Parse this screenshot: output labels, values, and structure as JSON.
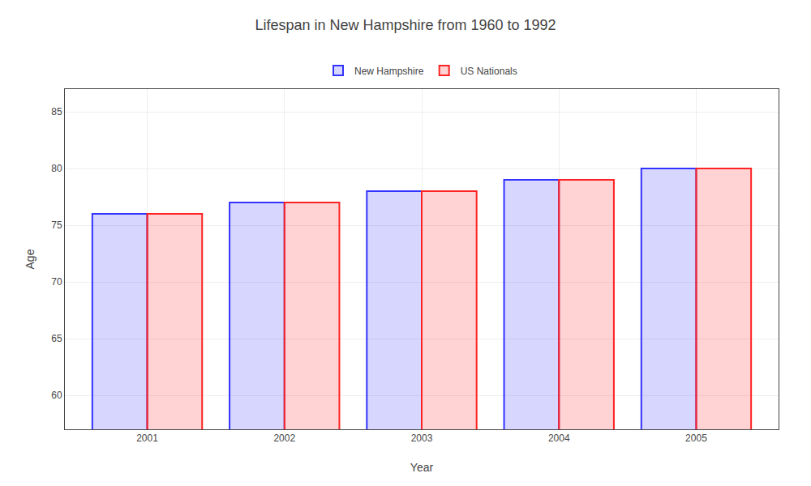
{
  "chart_data": {
    "type": "bar",
    "title": "Lifespan in New Hampshire from 1960 to 1992",
    "xlabel": "Year",
    "ylabel": "Age",
    "categories": [
      "2001",
      "2002",
      "2003",
      "2004",
      "2005"
    ],
    "series": [
      {
        "name": "New Hampshire",
        "color": "#3333ff",
        "values": [
          76,
          77,
          78,
          79,
          80
        ]
      },
      {
        "name": "US Nationals",
        "color": "#ff2222",
        "values": [
          76,
          77,
          78,
          79,
          80
        ]
      }
    ],
    "ylim": [
      57,
      87
    ],
    "yticks": [
      60,
      65,
      70,
      75,
      80,
      85
    ],
    "grid": true,
    "legend": "upper center"
  }
}
